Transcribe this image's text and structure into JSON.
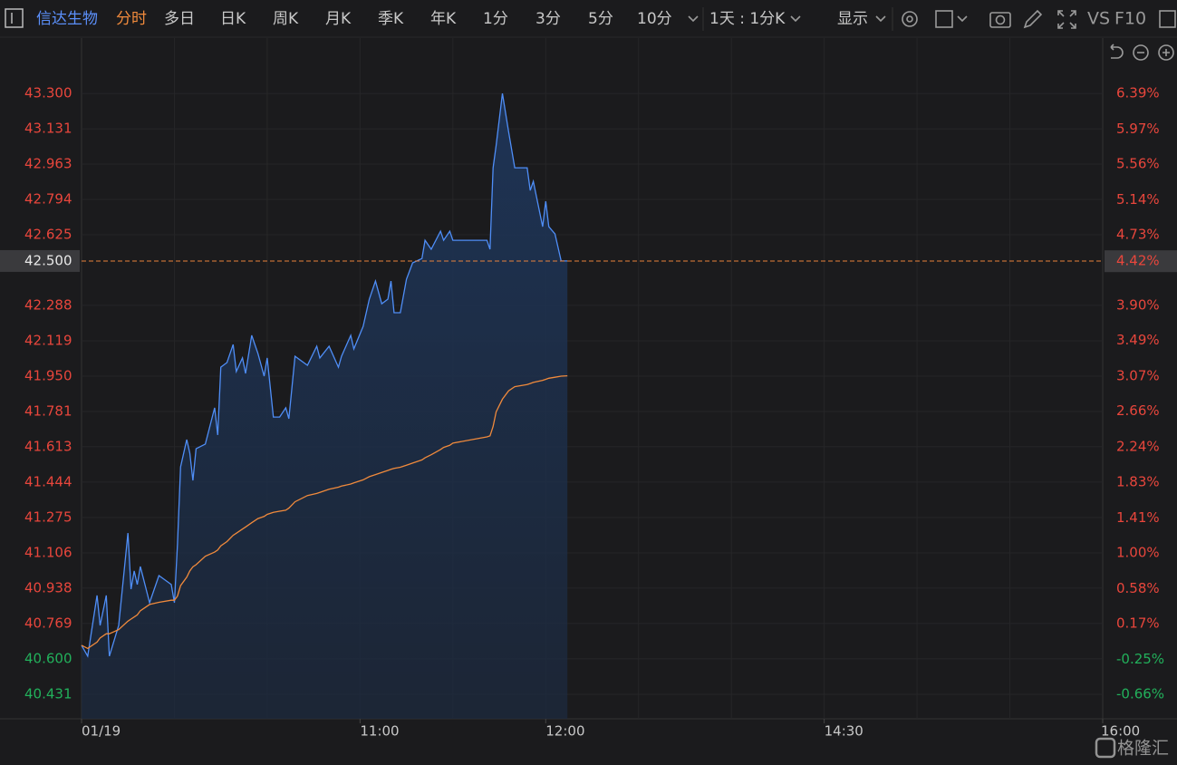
{
  "toolbar": {
    "stock": "信达生物",
    "tabs": [
      "分时",
      "多日",
      "日K",
      "周K",
      "月K",
      "季K",
      "年K",
      "1分",
      "3分",
      "5分",
      "10分"
    ],
    "active_tab": 0,
    "period": "1天 : 1分K",
    "display": "显示",
    "vs": "VS",
    "f10": "F10"
  },
  "watermark": "格隆汇",
  "chart_data": {
    "type": "line",
    "x": [
      "09:30",
      "09:32",
      "09:35",
      "09:36",
      "09:38",
      "09:39",
      "09:42",
      "09:45",
      "09:46",
      "09:47",
      "09:48",
      "09:49",
      "09:52",
      "09:55",
      "09:59",
      "10:00",
      "10:01",
      "10:02",
      "10:04",
      "10:05",
      "10:06",
      "10:07",
      "10:10",
      "10:13",
      "10:14",
      "10:15",
      "10:17",
      "10:19",
      "10:20",
      "10:22",
      "10:23",
      "10:25",
      "10:27",
      "10:29",
      "10:30",
      "10:32",
      "10:34",
      "10:36",
      "10:37",
      "10:39",
      "10:43",
      "10:46",
      "10:47",
      "10:50",
      "10:53",
      "10:54",
      "10:57",
      "10:58",
      "11:01",
      "11:03",
      "11:05",
      "11:07",
      "11:09",
      "11:10",
      "11:11",
      "11:13",
      "11:15",
      "11:17",
      "11:20",
      "11:21",
      "11:23",
      "11:26",
      "11:27",
      "11:29",
      "11:30",
      "11:41",
      "11:42",
      "11:43",
      "11:44",
      "11:46",
      "11:48",
      "11:50",
      "11:54",
      "11:55",
      "11:56",
      "11:59",
      "12:00",
      "12:01",
      "12:03",
      "12:05",
      "12:07"
    ],
    "series": [
      {
        "color": "#4f8ef7",
        "fill": true,
        "values": [
          40.665,
          40.613,
          40.903,
          40.76,
          40.903,
          40.613,
          40.76,
          41.201,
          40.933,
          41.02,
          40.955,
          41.041,
          40.868,
          40.998,
          40.955,
          40.868,
          41.15,
          41.517,
          41.647,
          41.582,
          41.452,
          41.604,
          41.626,
          41.799,
          41.669,
          41.993,
          42.015,
          42.101,
          41.972,
          42.037,
          41.963,
          42.145,
          42.058,
          41.95,
          42.037,
          41.755,
          41.755,
          41.799,
          41.747,
          42.045,
          42.002,
          42.093,
          42.037,
          42.093,
          41.993,
          42.045,
          42.145,
          42.08,
          42.188,
          42.318,
          42.404,
          42.296,
          42.318,
          42.404,
          42.253,
          42.253,
          42.413,
          42.491,
          42.512,
          42.599,
          42.556,
          42.642,
          42.599,
          42.642,
          42.599,
          42.599,
          42.556,
          42.945,
          43.053,
          43.3,
          43.118,
          42.945,
          42.945,
          42.837,
          42.88,
          42.664,
          42.785,
          42.664,
          42.629,
          42.5,
          42.5
        ]
      },
      {
        "color": "#f08a3c",
        "fill": false,
        "values": [
          40.665,
          40.65,
          40.68,
          40.7,
          40.72,
          40.72,
          40.74,
          40.78,
          40.79,
          40.8,
          40.81,
          40.83,
          40.86,
          40.87,
          40.88,
          40.88,
          40.9,
          40.95,
          40.99,
          41.02,
          41.04,
          41.05,
          41.09,
          41.11,
          41.12,
          41.14,
          41.16,
          41.19,
          41.2,
          41.22,
          41.23,
          41.25,
          41.27,
          41.28,
          41.29,
          41.3,
          41.305,
          41.31,
          41.32,
          41.35,
          41.38,
          41.39,
          41.395,
          41.41,
          41.42,
          41.425,
          41.435,
          41.44,
          41.455,
          41.47,
          41.48,
          41.49,
          41.5,
          41.505,
          41.51,
          41.515,
          41.525,
          41.535,
          41.55,
          41.56,
          41.575,
          41.6,
          41.61,
          41.62,
          41.63,
          41.66,
          41.665,
          41.71,
          41.78,
          41.84,
          41.88,
          41.9,
          41.91,
          41.915,
          41.92,
          41.93,
          41.935,
          41.94,
          41.945,
          41.95,
          41.952
        ]
      }
    ],
    "xlim": [
      "09:30",
      "16:00"
    ],
    "xticks": [
      {
        "value": "09:30",
        "label": "01/19"
      },
      "11:00",
      "12:00",
      "14:30",
      "16:00"
    ],
    "xgrid": [
      "10:00",
      "10:30",
      "11:00",
      "11:30",
      "12:00",
      "13:30",
      "14:00",
      "14:30",
      "15:00",
      "15:30"
    ],
    "ylim": [
      40.314,
      43.413
    ],
    "yticks": [
      {
        "value": 43.3,
        "label": "43.300"
      },
      43.131,
      42.963,
      42.794,
      42.625,
      42.288,
      42.119,
      {
        "value": 41.95,
        "label": "41.950"
      },
      41.781,
      41.613,
      41.444,
      41.275,
      41.106,
      40.938,
      40.769,
      {
        "value": 40.6,
        "label": "40.600"
      },
      40.431
    ],
    "y2lim": [
      -0.948,
      6.666
    ],
    "y2ticks": [
      {
        "value": 6.39,
        "label": "6.39%"
      },
      {
        "value": 5.97,
        "label": "5.97%"
      },
      {
        "value": 5.56,
        "label": "5.56%"
      },
      {
        "value": 5.14,
        "label": "5.14%"
      },
      {
        "value": 4.73,
        "label": "4.73%"
      },
      {
        "value": 3.9,
        "label": "3.90%"
      },
      {
        "value": 3.49,
        "label": "3.49%"
      },
      {
        "value": 3.07,
        "label": "3.07%"
      },
      {
        "value": 2.66,
        "label": "2.66%"
      },
      {
        "value": 2.24,
        "label": "2.24%"
      },
      {
        "value": 1.83,
        "label": "1.83%"
      },
      {
        "value": 1.41,
        "label": "1.41%"
      },
      {
        "value": 1.0,
        "label": "1.00%"
      },
      {
        "value": 0.58,
        "label": "0.58%"
      },
      {
        "value": 0.17,
        "label": "0.17%"
      },
      {
        "value": -0.25,
        "label": "-0.25%"
      },
      {
        "value": -0.66,
        "label": "-0.66%"
      }
    ],
    "up_color": "#e8463c",
    "down_color": "#22b05b",
    "last_price": {
      "value": 42.5,
      "label": "42.500"
    },
    "last_change": {
      "value": 4.42,
      "label": "4.42%"
    },
    "grid": true
  }
}
